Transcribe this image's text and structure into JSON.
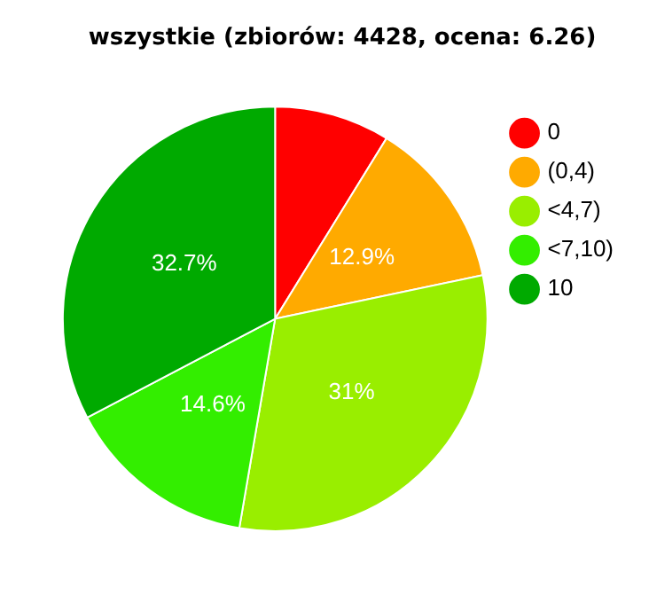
{
  "chart_data": {
    "type": "pie",
    "title": "wszystkie (zbiorów: 4428, ocena: 6.26)",
    "categories": [
      "0",
      "(0,4)",
      "<4,7)",
      "<7,10)",
      "10"
    ],
    "values": [
      8.8,
      12.9,
      31,
      14.6,
      32.7
    ],
    "colors": [
      "#ff0000",
      "#ffaa00",
      "#99ee00",
      "#33ee00",
      "#00aa00"
    ],
    "value_labels": [
      null,
      "12.9%",
      "31%",
      "14.6%",
      "32.7%"
    ],
    "legend": "right"
  }
}
